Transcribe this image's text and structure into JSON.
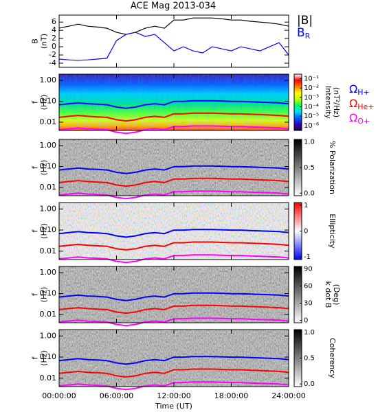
{
  "chart_data": {
    "title": "ACE Mag 2013-034",
    "xlabel": "Time (UT)",
    "xlim": [
      0,
      24
    ],
    "xticks": [
      {
        "value": 0,
        "label": "00:00:00"
      },
      {
        "value": 6,
        "label": "06:00:00"
      },
      {
        "value": 12,
        "label": "12:00:00"
      },
      {
        "value": 18,
        "label": "18:00:00"
      },
      {
        "value": 24,
        "label": "24:00:00"
      }
    ],
    "x": [
      0,
      1,
      2,
      3,
      4,
      5,
      6,
      7,
      8,
      9,
      10,
      11,
      12,
      13,
      14,
      15,
      16,
      17,
      18,
      19,
      20,
      21,
      22,
      23,
      24
    ],
    "gyrofrequencies": [
      {
        "name": "Ω",
        "name_sub": "H+",
        "color": "#0000ff",
        "values": [
          0.068,
          0.076,
          0.084,
          0.076,
          0.073,
          0.068,
          0.053,
          0.046,
          0.053,
          0.068,
          0.076,
          0.068,
          0.099,
          0.099,
          0.106,
          0.106,
          0.106,
          0.103,
          0.099,
          0.099,
          0.094,
          0.091,
          0.088,
          0.084,
          0.076
        ]
      },
      {
        "name": "Ω",
        "name_sub": "He+",
        "color": "#ff0000",
        "values": [
          0.017,
          0.019,
          0.021,
          0.019,
          0.018,
          0.017,
          0.013,
          0.0115,
          0.013,
          0.017,
          0.019,
          0.017,
          0.025,
          0.025,
          0.027,
          0.027,
          0.027,
          0.026,
          0.025,
          0.025,
          0.024,
          0.023,
          0.022,
          0.021,
          0.019
        ]
      },
      {
        "name": "Ω",
        "name_sub": "O+",
        "color": "#ff00ff",
        "values": [
          0.0043,
          0.0048,
          0.0053,
          0.0048,
          0.0046,
          0.0043,
          0.0033,
          0.0029,
          0.0033,
          0.0043,
          0.0048,
          0.0043,
          0.0062,
          0.0062,
          0.0066,
          0.0066,
          0.0066,
          0.0064,
          0.0062,
          0.0062,
          0.0059,
          0.0057,
          0.0055,
          0.0053,
          0.0048
        ]
      }
    ],
    "panels": [
      {
        "type": "line",
        "ylabel": [
          "B",
          "(nT)"
        ],
        "ylim": [
          -5,
          7.7
        ],
        "yticks": [
          -4,
          -2,
          0,
          2,
          4,
          6
        ],
        "series": [
          {
            "name": "|B|",
            "color": "#000000",
            "values": [
              4.5,
              5,
              5.5,
              5,
              4.8,
              4.5,
              3.5,
              3,
              3.5,
              4.5,
              5,
              4.5,
              6.5,
              6.5,
              7,
              7,
              7,
              6.8,
              6.5,
              6.5,
              6.2,
              6,
              5.8,
              5.5,
              5
            ]
          },
          {
            "name": "B",
            "name_sub": "R",
            "color": "#0000ff",
            "values": [
              -3,
              -3.2,
              -3.3,
              -3.2,
              -3,
              -2.8,
              1.5,
              3,
              3.5,
              2.5,
              3,
              1,
              -1,
              0,
              -1,
              -1.5,
              0,
              -0.5,
              -1,
              0,
              -0.5,
              -1,
              0,
              1,
              -2
            ]
          }
        ]
      },
      {
        "type": "spectrogram",
        "ylabel": [
          "f",
          "(Hz)"
        ],
        "log_y": true,
        "ylim": [
          0.004,
          2
        ],
        "yticks": [
          {
            "value": 1,
            "label": "1.00"
          },
          {
            "value": 0.1,
            "label": "0.10"
          },
          {
            "value": 0.01,
            "label": "0.01"
          }
        ],
        "colorbar": {
          "label": [
            "Intensity",
            "(nT²/Hz)"
          ],
          "log": true,
          "clim": [
            3e-07,
            0.3
          ],
          "colors": [
            "#200040",
            "#3000c0",
            "#0060ff",
            "#00e0ff",
            "#00ff60",
            "#c0ff00",
            "#ffff00",
            "#ff8000",
            "#ff0000",
            "#ffffff"
          ],
          "ticks": [
            {
              "value": 0.1,
              "label": "10⁻¹"
            },
            {
              "value": 0.01,
              "label": "10⁻²"
            },
            {
              "value": 0.001,
              "label": "10⁻³"
            },
            {
              "value": 0.0001,
              "label": "10⁻⁴"
            },
            {
              "value": 1e-05,
              "label": "10⁻⁵"
            },
            {
              "value": 1e-06,
              "label": "10⁻⁶"
            }
          ]
        }
      },
      {
        "type": "spectrogram",
        "ylabel": [
          "f",
          "(Hz)"
        ],
        "log_y": true,
        "ylim": [
          0.004,
          2
        ],
        "yticks": [
          {
            "value": 1,
            "label": "1.00"
          },
          {
            "value": 0.1,
            "label": "0.10"
          },
          {
            "value": 0.01,
            "label": "0.01"
          }
        ],
        "colorbar": {
          "label": [
            "% Polarization"
          ],
          "log": false,
          "clim": [
            -0.05,
            1.05
          ],
          "colors": [
            "#ffffff",
            "#000000"
          ],
          "ticks": [
            {
              "value": 0,
              "label": "0.0"
            },
            {
              "value": 0.5,
              "label": "0.5"
            },
            {
              "value": 1,
              "label": "1.0"
            }
          ]
        }
      },
      {
        "type": "spectrogram",
        "ylabel": [
          "f",
          "(Hz)"
        ],
        "log_y": true,
        "ylim": [
          0.004,
          2
        ],
        "yticks": [
          {
            "value": 1,
            "label": "1.00"
          },
          {
            "value": 0.1,
            "label": "0.10"
          },
          {
            "value": 0.01,
            "label": "0.01"
          }
        ],
        "colorbar": {
          "label": [
            "Ellipticity"
          ],
          "log": false,
          "clim": [
            -1.1,
            1.1
          ],
          "colors": [
            "#0000ff",
            "#ffffff",
            "#ff0000"
          ],
          "ticks": [
            -1,
            0,
            1
          ]
        }
      },
      {
        "type": "spectrogram",
        "ylabel": [
          "f",
          "(Hz)"
        ],
        "log_y": true,
        "ylim": [
          0.004,
          2
        ],
        "yticks": [
          {
            "value": 1,
            "label": "1.00"
          },
          {
            "value": 0.1,
            "label": "0.10"
          },
          {
            "value": 0.01,
            "label": "0.01"
          }
        ],
        "colorbar": {
          "label": [
            "k dot B",
            "(Deg)"
          ],
          "log": false,
          "clim": [
            -4,
            94
          ],
          "colors": [
            "#ffffff",
            "#000000"
          ],
          "ticks": [
            0,
            30,
            60,
            90
          ]
        }
      },
      {
        "type": "spectrogram",
        "ylabel": [
          "f",
          "(Hz)"
        ],
        "log_y": true,
        "ylim": [
          0.004,
          2
        ],
        "yticks": [
          {
            "value": 1,
            "label": "1.00"
          },
          {
            "value": 0.1,
            "label": "0.10"
          },
          {
            "value": 0.01,
            "label": "0.01"
          }
        ],
        "colorbar": {
          "label": [
            "Coherency"
          ],
          "log": false,
          "clim": [
            -0.05,
            1.05
          ],
          "colors": [
            "#ffffff",
            "#000000"
          ],
          "ticks": [
            {
              "value": 0,
              "label": "0.0"
            },
            {
              "value": 0.5,
              "label": "0.5"
            },
            {
              "value": 1,
              "label": "1.0"
            }
          ]
        }
      }
    ]
  }
}
